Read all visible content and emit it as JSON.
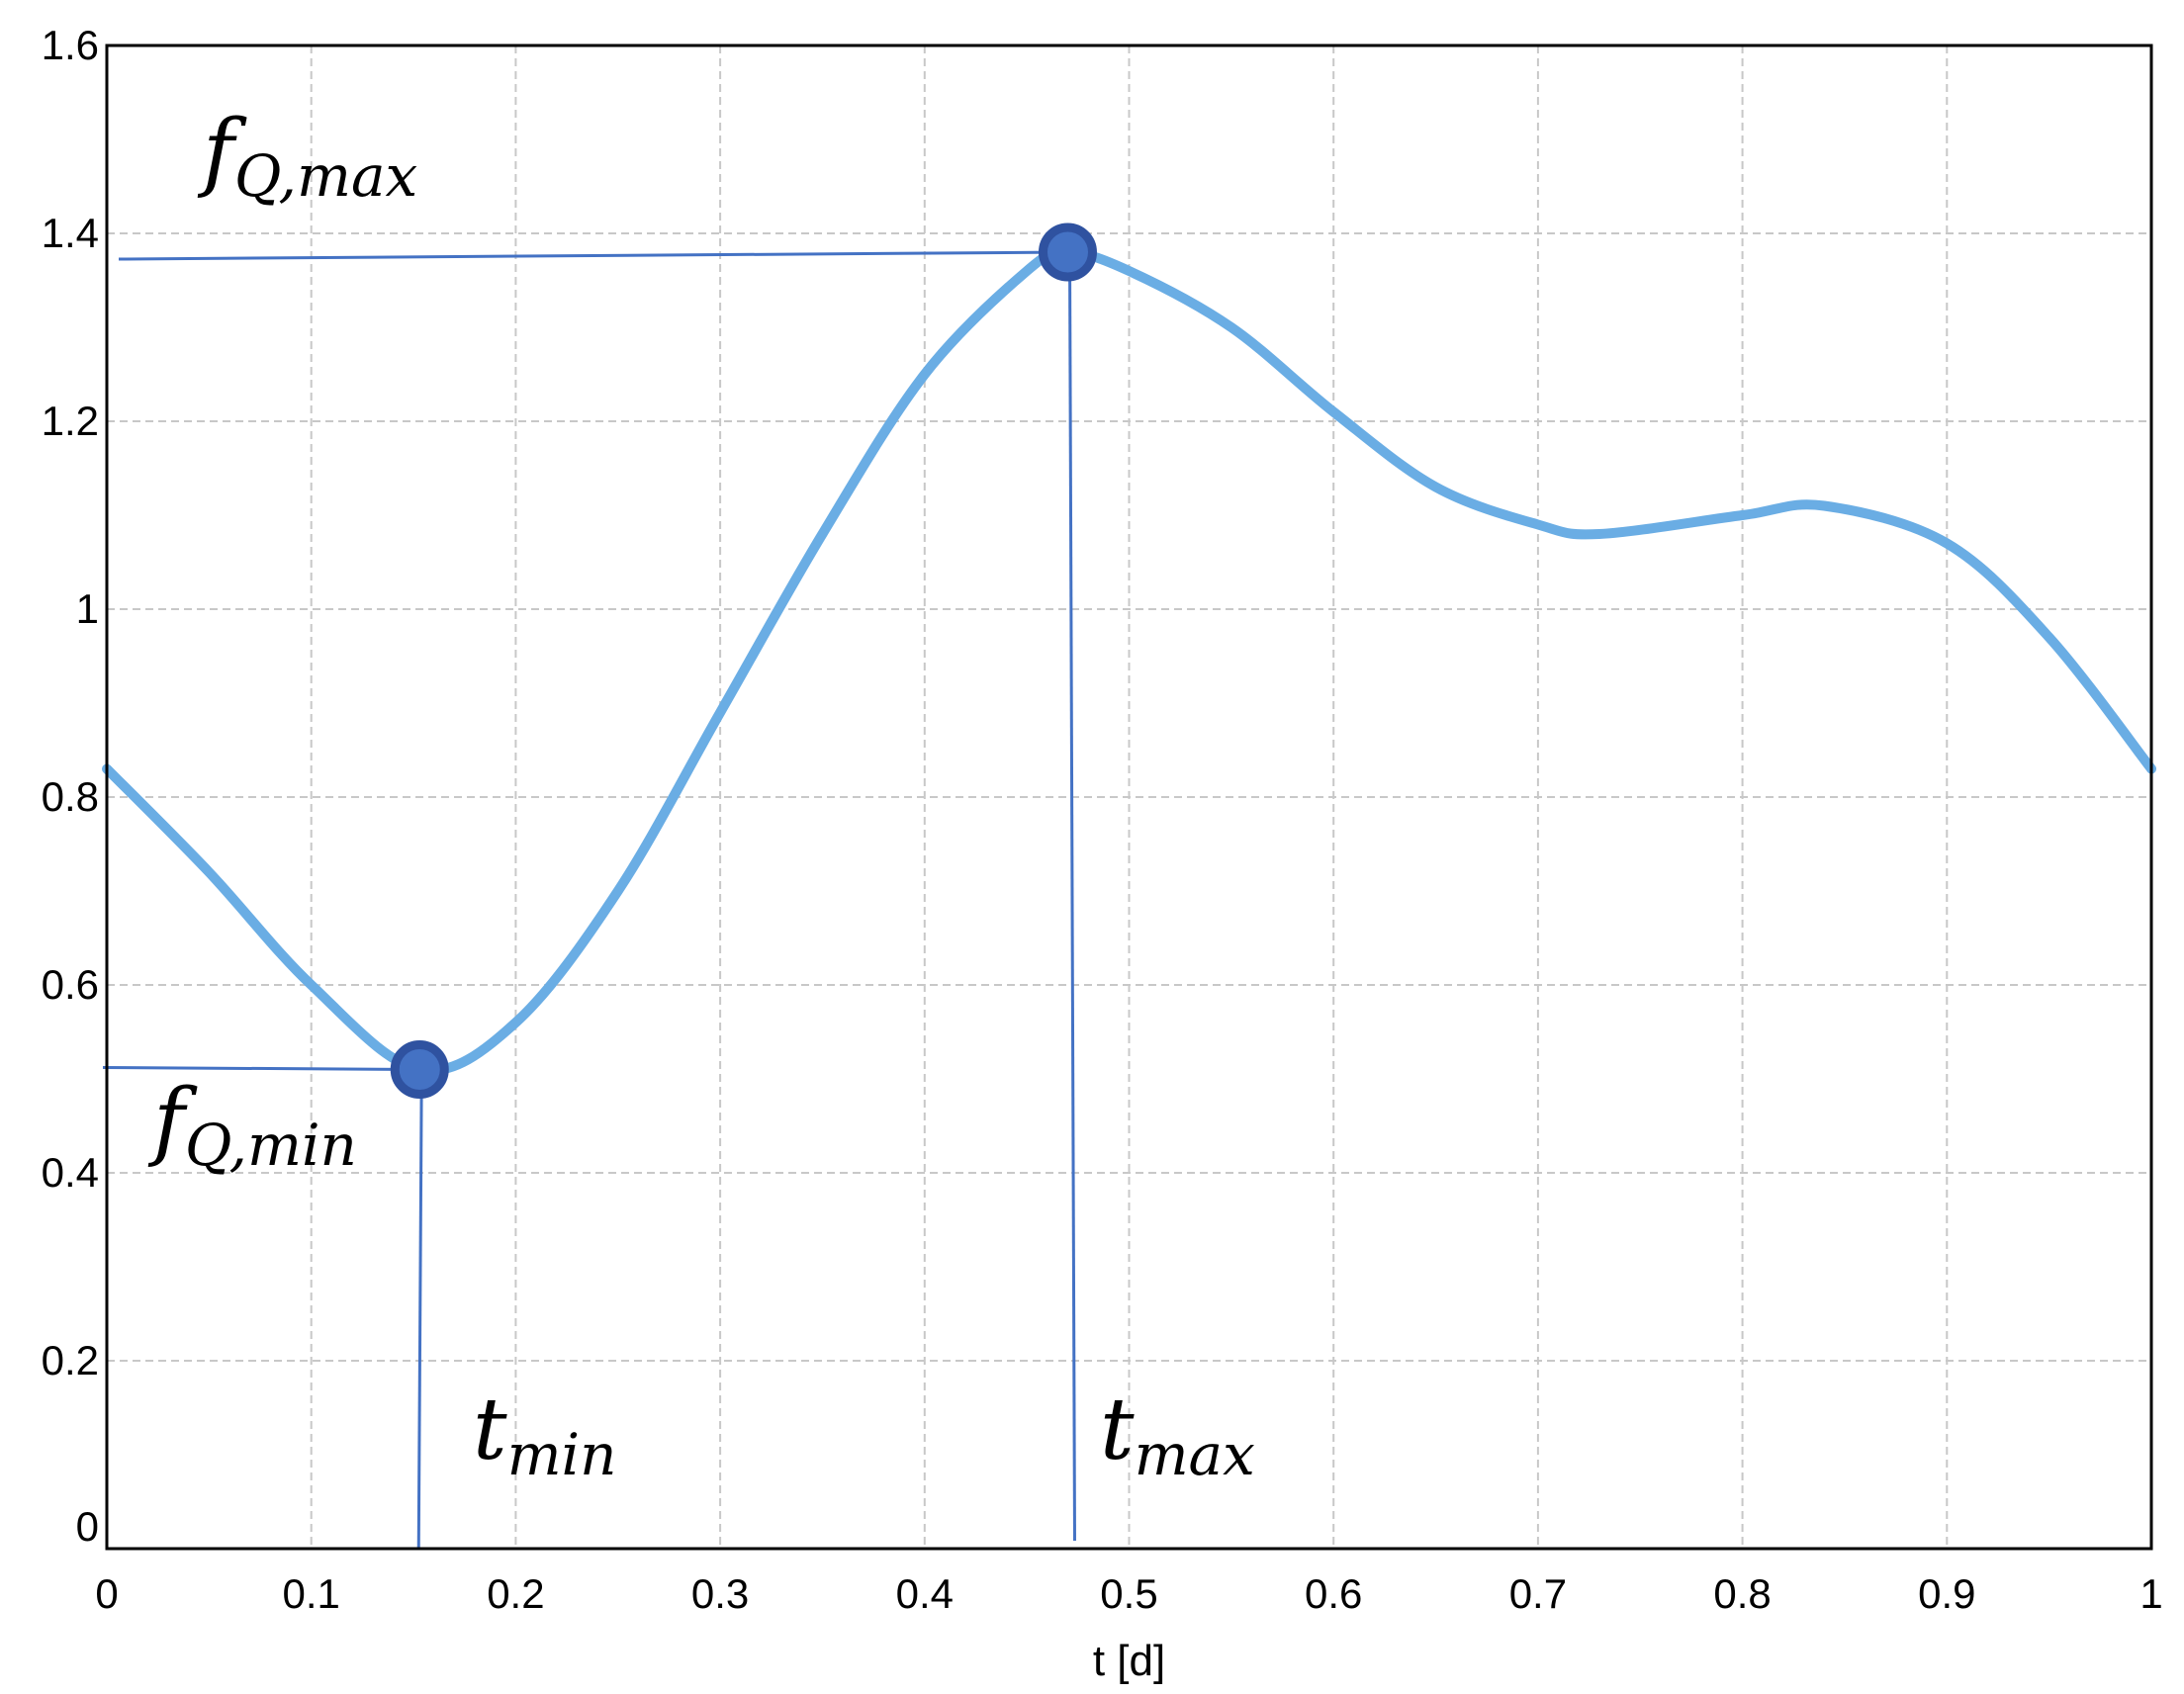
{
  "chart_data": {
    "type": "line",
    "xlabel": "t [d]",
    "ylabel": "",
    "xlim": [
      0,
      1
    ],
    "ylim": [
      0,
      1.6
    ],
    "grid": true,
    "x_ticks": [
      "0",
      "0.1",
      "0.2",
      "0.3",
      "0.4",
      "0.5",
      "0.6",
      "0.7",
      "0.8",
      "0.9",
      "1"
    ],
    "y_ticks": [
      "0",
      "0.2",
      "0.4",
      "0.6",
      "0.8",
      "1",
      "1.2",
      "1.4",
      "1.6"
    ],
    "series": [
      {
        "color": "#6aade4",
        "x": [
          0,
          0.05,
          0.1,
          0.153,
          0.2,
          0.25,
          0.3,
          0.35,
          0.4,
          0.45,
          0.47,
          0.5,
          0.55,
          0.6,
          0.65,
          0.7,
          0.73,
          0.8,
          0.84,
          0.9,
          0.95,
          1.0
        ],
        "y": [
          0.83,
          0.72,
          0.6,
          0.51,
          0.56,
          0.7,
          0.89,
          1.08,
          1.25,
          1.36,
          1.38,
          1.36,
          1.3,
          1.21,
          1.13,
          1.09,
          1.08,
          1.1,
          1.11,
          1.07,
          0.97,
          0.83
        ]
      }
    ],
    "annotations": {
      "max_point": {
        "x": 0.47,
        "y": 1.38,
        "label_main": "f",
        "label_sub": "Q,max"
      },
      "min_point": {
        "x": 0.153,
        "y": 0.51,
        "label_main": "f",
        "label_sub": "Q,min"
      },
      "t_max": {
        "x": 0.47,
        "label_main": "t",
        "label_sub": "max"
      },
      "t_min": {
        "x": 0.153,
        "label_main": "t",
        "label_sub": "min"
      },
      "marker_fill": "#4472c4",
      "marker_stroke": "#2f52a0",
      "guide_color": "#4472c4"
    }
  }
}
